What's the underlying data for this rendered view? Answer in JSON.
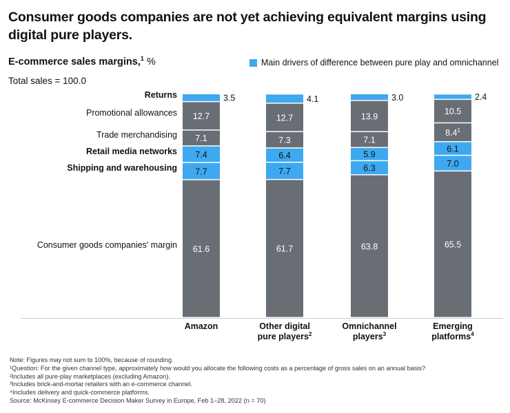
{
  "title": "Consumer goods companies are not yet achieving equivalent margins using digital pure players.",
  "subtitle": "E-commerce sales margins,",
  "subtitle_sup": "1",
  "subtitle_unit": "%",
  "total_label": "Total sales = 100.0",
  "legend": {
    "label": "Main drivers of difference between pure play and omnichannel",
    "color": "#3ea8f0"
  },
  "colors": {
    "gray": "#686e74",
    "blue": "#3ea8f0",
    "axis": "#cccccc",
    "separator": "#ffffff"
  },
  "chart_data": {
    "type": "bar",
    "stacked": true,
    "categories": [
      {
        "name": "Amazon",
        "sup": ""
      },
      {
        "name": "Other digital pure players",
        "sup": "2"
      },
      {
        "name": "Omnichannel players",
        "sup": "3"
      },
      {
        "name": "Emerging platforms",
        "sup": "4"
      }
    ],
    "series": [
      {
        "name": "Consumer goods companies' margin",
        "highlight": false,
        "bold": false,
        "values": [
          61.6,
          61.7,
          63.8,
          65.5
        ],
        "labels": [
          "61.6",
          "61.7",
          "63.8",
          "65.5"
        ]
      },
      {
        "name": "Shipping and warehousing",
        "highlight": true,
        "bold": true,
        "values": [
          7.7,
          7.7,
          6.3,
          7.0
        ],
        "labels": [
          "7.7",
          "7.7",
          "6.3",
          "7.0"
        ]
      },
      {
        "name": "Retail media networks",
        "highlight": true,
        "bold": true,
        "values": [
          7.4,
          6.4,
          5.9,
          6.1
        ],
        "labels": [
          "7.4",
          "6.4",
          "5.9",
          "6.1"
        ]
      },
      {
        "name": "Trade merchandising",
        "highlight": false,
        "bold": false,
        "values": [
          7.1,
          7.3,
          7.1,
          8.4
        ],
        "labels": [
          "7.1",
          "7.3",
          "7.1",
          "8.4"
        ],
        "label_sups": [
          "",
          "",
          "",
          "1"
        ]
      },
      {
        "name": "Promotional allowances",
        "highlight": false,
        "bold": false,
        "values": [
          12.7,
          12.7,
          13.9,
          10.5
        ],
        "labels": [
          "12.7",
          "12.7",
          "13.9",
          "10.5"
        ]
      },
      {
        "name": "Returns",
        "highlight": true,
        "bold": true,
        "values": [
          3.5,
          4.1,
          3.0,
          2.4
        ],
        "labels": [
          "3.5",
          "4.1",
          "3.0",
          "2.4"
        ],
        "labels_outside": true
      }
    ]
  },
  "footnotes": [
    "Note: Figures may not sum to 100%, because of rounding.",
    "¹Question: For the given channel type, approximately how would you allocate the following costs as a percentage of gross sales on an annual basis?",
    "²Includes all pure-play marketplaces (excluding Amazon).",
    "³Includes brick-and-mortar retailers with an e-commerce channel.",
    "⁴Includes delivery and quick-commerce platforms.",
    "Source: McKinsey E-commerce Decision Maker Survey in Europe, Feb 1–28, 2022 (n = 70)"
  ]
}
